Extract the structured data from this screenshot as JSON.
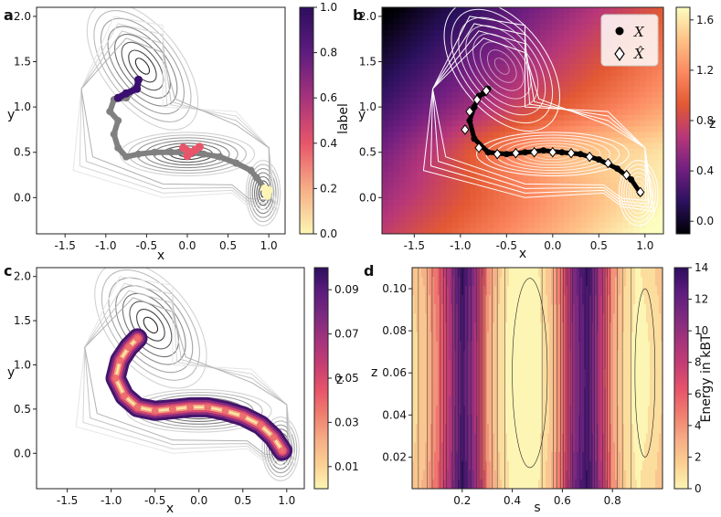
{
  "chart_data": [
    {
      "id": "a",
      "type": "scatter",
      "panel_label": "a",
      "description_kind": "potential contours with trajectory colored by label",
      "xlabel": "x",
      "ylabel": "y",
      "xlim": [
        -1.85,
        1.2
      ],
      "ylim": [
        -0.4,
        2.1
      ],
      "xticks": [
        "-1.5",
        "-1.0",
        "-0.5",
        "0.0",
        "0.5",
        "1.0"
      ],
      "xtick_values": [
        -1.5,
        -1.0,
        -0.5,
        0.0,
        0.5,
        1.0
      ],
      "yticks": [
        "0.0",
        "0.5",
        "1.0",
        "1.5",
        "2.0"
      ],
      "ytick_values": [
        0.0,
        0.5,
        1.0,
        1.5,
        2.0
      ],
      "colorbar": {
        "label": "label",
        "range": [
          0.0,
          1.0
        ],
        "ticks": [
          "0.0",
          "0.2",
          "0.4",
          "0.6",
          "0.8",
          "1.0"
        ],
        "tick_values": [
          0.0,
          0.2,
          0.4,
          0.6,
          0.8,
          1.0
        ],
        "colors": [
          "#fcf5b4",
          "#f6ad86",
          "#e8556a",
          "#a6337c",
          "#5d1c7e",
          "#2d0e5e"
        ]
      },
      "series": [
        {
          "name": "transition path",
          "color": "#808080",
          "x": [
            0.95,
            0.85,
            0.78,
            0.6,
            0.4,
            0.2,
            0.0,
            -0.2,
            -0.4,
            -0.6,
            -0.75,
            -0.85,
            -0.9,
            -0.85,
            -0.95,
            -0.9,
            -0.75,
            -0.65
          ],
          "y": [
            0.1,
            0.22,
            0.3,
            0.38,
            0.45,
            0.48,
            0.5,
            0.5,
            0.5,
            0.48,
            0.45,
            0.55,
            0.7,
            0.85,
            0.95,
            1.08,
            1.1,
            1.2
          ]
        },
        {
          "name": "label 0.0",
          "color": "#fcf5b4",
          "x": [
            0.97,
            0.95,
            1.0,
            0.98
          ],
          "y": [
            0.05,
            0.1,
            0.08,
            0.02
          ]
        },
        {
          "name": "label 0.4",
          "color": "#e8556a",
          "x": [
            -0.05,
            0.05,
            0.15,
            0.0,
            0.1
          ],
          "y": [
            0.55,
            0.5,
            0.56,
            0.46,
            0.53
          ]
        },
        {
          "name": "label 1.0",
          "color": "#3b0f70",
          "x": [
            -0.85,
            -0.75,
            -0.62,
            -0.6
          ],
          "y": [
            1.1,
            1.15,
            1.2,
            1.3
          ]
        }
      ]
    },
    {
      "id": "b",
      "type": "heatmap",
      "panel_label": "b",
      "description_kind": "z field with data X and reconstruction X-hat",
      "xlabel": "x",
      "ylabel": "y",
      "xlim": [
        -1.85,
        1.2
      ],
      "ylim": [
        -0.4,
        2.1
      ],
      "xticks": [
        "-1.5",
        "-1.0",
        "-0.5",
        "0.0",
        "0.5",
        "1.0"
      ],
      "xtick_values": [
        -1.5,
        -1.0,
        -0.5,
        0.0,
        0.5,
        1.0
      ],
      "yticks": [
        "0.0",
        "0.5",
        "1.0",
        "1.5",
        "2.0"
      ],
      "ytick_values": [
        0.0,
        0.5,
        1.0,
        1.5,
        2.0
      ],
      "legend": {
        "placement": "top-right",
        "entries": [
          "X",
          "X̂"
        ]
      },
      "colorbar": {
        "label": "z",
        "range": [
          -0.1,
          1.7
        ],
        "ticks": [
          "0.0",
          "0.4",
          "0.8",
          "1.2",
          "1.6"
        ],
        "tick_values": [
          0.0,
          0.4,
          0.8,
          1.2,
          1.6
        ]
      },
      "series": [
        {
          "name": "X",
          "color": "#000000",
          "x": [
            0.95,
            0.85,
            0.7,
            0.5,
            0.3,
            0.1,
            -0.1,
            -0.3,
            -0.5,
            -0.7,
            -0.85,
            -0.9,
            -0.85,
            -0.8,
            -0.75,
            -0.7
          ],
          "y": [
            0.05,
            0.2,
            0.32,
            0.42,
            0.48,
            0.5,
            0.52,
            0.5,
            0.48,
            0.5,
            0.65,
            0.85,
            1.0,
            1.12,
            1.15,
            1.2
          ]
        },
        {
          "name": "X̂",
          "color": "#ffffff",
          "x": [
            0.95,
            0.8,
            0.6,
            0.4,
            0.2,
            0.0,
            -0.2,
            -0.4,
            -0.6,
            -0.8,
            -0.95,
            -0.9,
            -0.82,
            -0.72
          ],
          "y": [
            0.06,
            0.25,
            0.38,
            0.45,
            0.49,
            0.5,
            0.5,
            0.49,
            0.48,
            0.55,
            0.75,
            0.95,
            1.08,
            1.18
          ]
        }
      ]
    },
    {
      "id": "c",
      "type": "scatter",
      "panel_label": "c",
      "description_kind": "samples colored by z along the transition tube",
      "xlabel": "x",
      "ylabel": "y",
      "xlim": [
        -1.85,
        1.2
      ],
      "ylim": [
        -0.4,
        2.1
      ],
      "xticks": [
        "-1.5",
        "-1.0",
        "-0.5",
        "0.0",
        "0.5",
        "1.0"
      ],
      "xtick_values": [
        -1.5,
        -1.0,
        -0.5,
        0.0,
        0.5,
        1.0
      ],
      "yticks": [
        "0.0",
        "0.5",
        "1.0",
        "1.5",
        "2.0"
      ],
      "ytick_values": [
        0.0,
        0.5,
        1.0,
        1.5,
        2.0
      ],
      "colorbar": {
        "label": "z",
        "range": [
          0.0,
          0.1
        ],
        "ticks": [
          "0.01",
          "0.03",
          "0.05",
          "0.07",
          "0.09"
        ],
        "tick_values": [
          0.01,
          0.03,
          0.05,
          0.07,
          0.09
        ]
      },
      "tube_center": {
        "x": [
          0.95,
          0.85,
          0.7,
          0.5,
          0.3,
          0.1,
          -0.1,
          -0.3,
          -0.5,
          -0.7,
          -0.85,
          -0.95,
          -0.9,
          -0.8,
          -0.7
        ],
        "y": [
          0.03,
          0.18,
          0.32,
          0.42,
          0.48,
          0.52,
          0.52,
          0.5,
          0.48,
          0.52,
          0.65,
          0.85,
          1.05,
          1.2,
          1.3
        ]
      }
    },
    {
      "id": "d",
      "type": "heatmap",
      "panel_label": "d",
      "description_kind": "free energy contours in (s, z)",
      "xlabel": "s",
      "ylabel": "z",
      "xlim": [
        0.0,
        1.0
      ],
      "ylim": [
        0.005,
        0.11
      ],
      "xticks": [
        "0.2",
        "0.4",
        "0.6",
        "0.8"
      ],
      "xtick_values": [
        0.2,
        0.4,
        0.6,
        0.8
      ],
      "yticks": [
        "0.02",
        "0.04",
        "0.06",
        "0.08",
        "0.10"
      ],
      "ytick_values": [
        0.02,
        0.04,
        0.06,
        0.08,
        0.1
      ],
      "energy_profile": {
        "s": [
          0.0,
          0.05,
          0.1,
          0.15,
          0.2,
          0.25,
          0.3,
          0.35,
          0.4,
          0.45,
          0.5,
          0.55,
          0.6,
          0.65,
          0.7,
          0.75,
          0.8,
          0.85,
          0.9,
          0.95,
          1.0
        ],
        "energy": [
          1.5,
          2.5,
          5.0,
          9.0,
          13.5,
          10.0,
          4.0,
          1.5,
          0.3,
          0.1,
          0.4,
          2.0,
          5.5,
          11.0,
          13.5,
          9.0,
          4.0,
          1.5,
          0.5,
          1.0,
          2.0
        ]
      },
      "colorbar": {
        "label": "Energy in k_BT",
        "label_text": "Energy in kBT",
        "range": [
          0,
          14
        ],
        "ticks": [
          "0",
          "2",
          "4",
          "6",
          "8",
          "10",
          "12",
          "14"
        ],
        "tick_values": [
          0,
          2,
          4,
          6,
          8,
          10,
          12,
          14
        ]
      }
    }
  ]
}
